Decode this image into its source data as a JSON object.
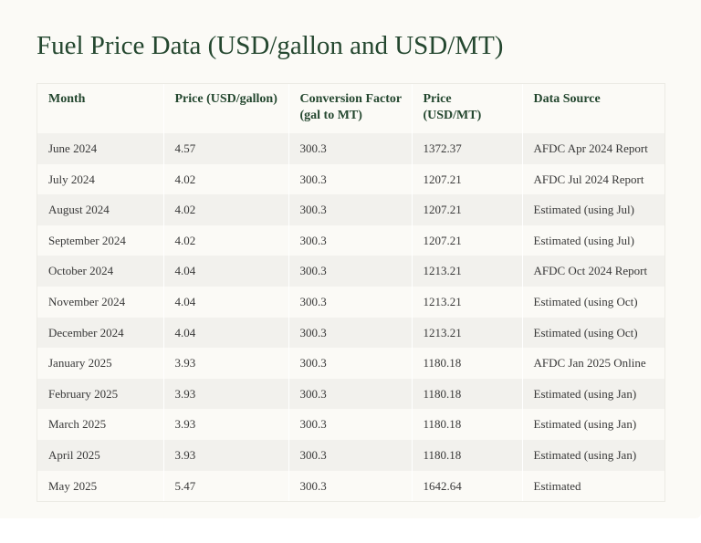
{
  "title": "Fuel Price Data (USD/gallon and USD/MT)",
  "table": {
    "headers": [
      "Month",
      "Price (USD/gallon)",
      "Conversion Factor (gal to MT)",
      "Price (USD/MT)",
      "Data Source"
    ],
    "rows": [
      [
        "June 2024",
        "4.57",
        "300.3",
        "1372.37",
        "AFDC Apr 2024 Report"
      ],
      [
        "July 2024",
        "4.02",
        "300.3",
        "1207.21",
        "AFDC Jul 2024 Report"
      ],
      [
        "August 2024",
        "4.02",
        "300.3",
        "1207.21",
        "Estimated (using Jul)"
      ],
      [
        "September 2024",
        "4.02",
        "300.3",
        "1207.21",
        "Estimated (using Jul)"
      ],
      [
        "October 2024",
        "4.04",
        "300.3",
        "1213.21",
        "AFDC Oct 2024 Report"
      ],
      [
        "November 2024",
        "4.04",
        "300.3",
        "1213.21",
        "Estimated (using Oct)"
      ],
      [
        "December 2024",
        "4.04",
        "300.3",
        "1213.21",
        "Estimated (using Oct)"
      ],
      [
        "January 2025",
        "3.93",
        "300.3",
        "1180.18",
        "AFDC Jan 2025 Online"
      ],
      [
        "February 2025",
        "3.93",
        "300.3",
        "1180.18",
        "Estimated (using Jan)"
      ],
      [
        "March 2025",
        "3.93",
        "300.3",
        "1180.18",
        "Estimated (using Jan)"
      ],
      [
        "April 2025",
        "3.93",
        "300.3",
        "1180.18",
        "Estimated (using Jan)"
      ],
      [
        "May 2025",
        "5.47",
        "300.3",
        "1642.64",
        "Estimated"
      ]
    ]
  },
  "colors": {
    "title": "#24472f",
    "header_text": "#24472f",
    "body_text": "#383838",
    "row_stripe": "#f2f1ed",
    "row_plain": "#fbfaf6"
  }
}
